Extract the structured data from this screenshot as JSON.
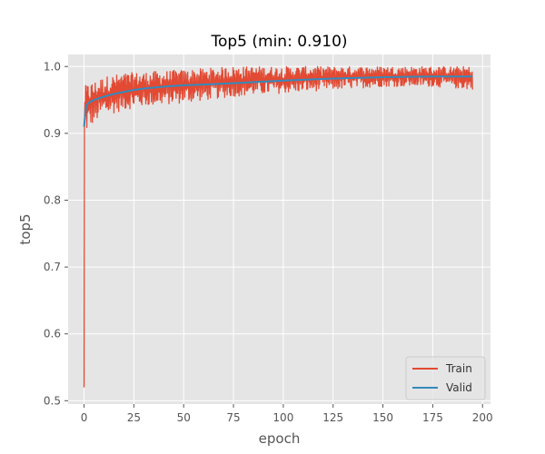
{
  "chart_data": {
    "type": "line",
    "title": "Top5 (min: 0.910)",
    "xlabel": "epoch",
    "ylabel": "top5",
    "xlim": [
      -8,
      204
    ],
    "ylim": [
      0.495,
      1.018
    ],
    "xticks": [
      0,
      25,
      50,
      75,
      100,
      125,
      150,
      175,
      200
    ],
    "yticks": [
      0.5,
      0.6,
      0.7,
      0.8,
      0.9,
      1.0
    ],
    "xtick_labels": [
      "0",
      "25",
      "50",
      "75",
      "100",
      "125",
      "150",
      "175",
      "200"
    ],
    "ytick_labels": [
      "0.5",
      "0.6",
      "0.7",
      "0.8",
      "0.9",
      "1.0"
    ],
    "grid": true,
    "legend_position": "bottom-right",
    "background": "#e5e5e5",
    "series": [
      {
        "name": "Train",
        "color": "#e24a33",
        "x_max": 195,
        "samples_per_epoch": 5,
        "start_value": 0.52,
        "envelope_x": [
          0,
          1,
          2,
          5,
          10,
          20,
          30,
          50,
          75,
          100,
          125,
          150,
          175,
          195
        ],
        "envelope_lower": [
          0.89,
          0.9,
          0.905,
          0.915,
          0.925,
          0.935,
          0.94,
          0.945,
          0.955,
          0.96,
          0.965,
          0.97,
          0.97,
          0.965
        ],
        "envelope_upper": [
          0.97,
          0.972,
          0.975,
          0.978,
          0.985,
          0.99,
          0.992,
          0.995,
          1.0,
          1.0,
          1.0,
          1.0,
          1.0,
          1.0
        ]
      },
      {
        "name": "Valid",
        "color": "#348abd",
        "x": [
          0,
          1,
          2,
          5,
          10,
          15,
          20,
          25,
          30,
          40,
          50,
          60,
          75,
          100,
          125,
          150,
          175,
          195
        ],
        "values": [
          0.91,
          0.94,
          0.945,
          0.95,
          0.955,
          0.959,
          0.962,
          0.965,
          0.967,
          0.97,
          0.972,
          0.973,
          0.975,
          0.979,
          0.982,
          0.984,
          0.985,
          0.985
        ]
      }
    ]
  }
}
